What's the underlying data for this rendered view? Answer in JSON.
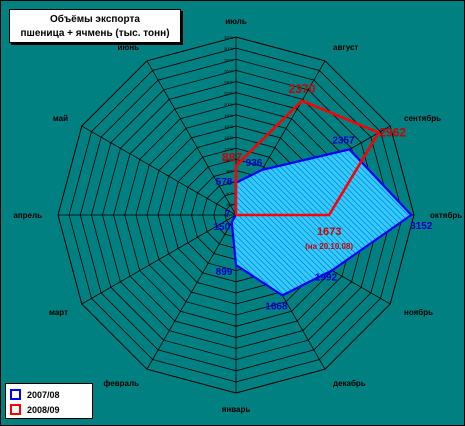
{
  "chart_data": {
    "type": "radar",
    "title": "Объёмы экспорта\nпшеница + ячмень (тыс. тонн)",
    "title_lines": [
      "Объёмы экспорта",
      "пшеница + ячмень (тыс. тонн)"
    ],
    "categories": [
      "июль",
      "август",
      "сентябрь",
      "октябрь",
      "ноябрь",
      "декабрь",
      "январь",
      "февраль",
      "март",
      "апрель",
      "май",
      "июнь"
    ],
    "rlim": [
      0,
      3200
    ],
    "rticks": [
      0,
      200,
      400,
      600,
      800,
      1000,
      1200,
      1400,
      1600,
      1800,
      2000,
      2200,
      2400,
      2600,
      2800,
      3000,
      3200
    ],
    "grid": true,
    "legend_position": "bottom-left",
    "series": [
      {
        "name": "2007/08",
        "values": [
          578,
          936,
          2357,
          3152,
          1992,
          1668,
          899,
          150,
          7,
          null,
          null,
          null
        ],
        "labels": [
          "578",
          "936",
          "2357",
          "3152",
          "1992",
          "1668",
          "899",
          "150",
          "7",
          "",
          "",
          ""
        ],
        "color": "#0000ff",
        "fill": "#33ccff"
      },
      {
        "name": "2008/09",
        "values": [
          887,
          2370,
          2962,
          1673,
          null,
          null,
          null,
          null,
          null,
          null,
          null,
          null
        ],
        "labels": [
          "887",
          "2370",
          "2962",
          "1673",
          "",
          "",
          "",
          "",
          "",
          "",
          "",
          ""
        ],
        "color": "#ff0000"
      }
    ],
    "annotations": [
      {
        "text": "(на 20.10.08)"
      }
    ]
  }
}
